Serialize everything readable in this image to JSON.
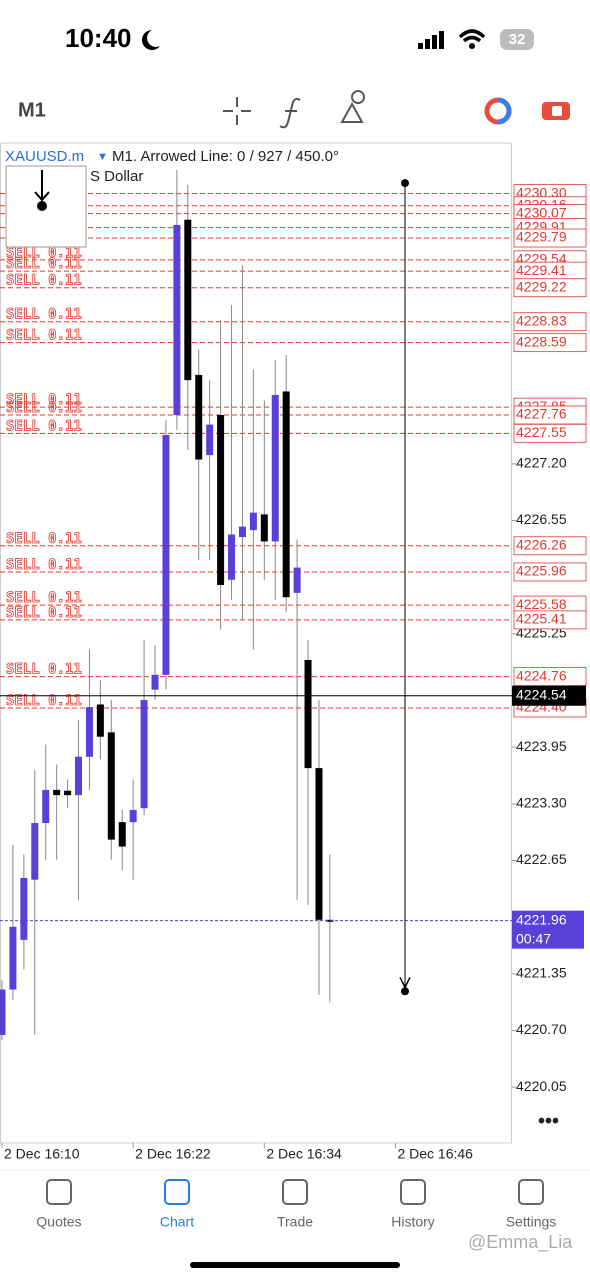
{
  "status_bar": {
    "time": "10:40",
    "battery": "32"
  },
  "toolbar": {
    "timeframe": "M1"
  },
  "chart_data": {
    "type": "candlestick",
    "symbol": "XAUUSD.m",
    "description": "M1. Arrowed Line: 0 / 927 / 450.0°",
    "subtitle": "S Dollar",
    "up_color": "#5a3fd8",
    "down_color": "#000000",
    "open": [
      4220.65,
      4221.17,
      4221.74,
      4222.43,
      4223.08,
      4223.46,
      4223.45,
      4223.4,
      4223.84,
      4224.44,
      4224.12,
      4223.09,
      4223.09,
      4223.25,
      4224.61,
      4224.78,
      4227.76,
      4230.0,
      4228.22,
      4227.3,
      4227.76,
      4225.87,
      4226.36,
      4226.44,
      4226.62,
      4226.31,
      4228.03,
      4225.72,
      4224.95,
      4223.71,
      4221.97
    ],
    "high": [
      4221.28,
      4222.83,
      4222.72,
      4223.69,
      4223.98,
      4223.75,
      4223.58,
      4224.26,
      4225.07,
      4224.72,
      4224.49,
      4223.23,
      4223.58,
      4225.18,
      4225.12,
      4227.7,
      4230.57,
      4230.4,
      4228.51,
      4228.16,
      4228.85,
      4229.02,
      4229.48,
      4228.28,
      4227.93,
      4228.39,
      4228.45,
      4226.33,
      4225.18,
      4224.49,
      4222.72
    ],
    "low": [
      4220.59,
      4221.05,
      4221.4,
      4220.65,
      4222.66,
      4222.66,
      4223.25,
      4222.2,
      4223.46,
      4223.81,
      4222.66,
      4222.54,
      4222.43,
      4223.17,
      4224.49,
      4224.61,
      4227.59,
      4227.36,
      4226.1,
      4226.1,
      4225.3,
      4225.64,
      4225.41,
      4225.07,
      4225.87,
      4225.64,
      4225.5,
      4222.2,
      4222.14,
      4221.11,
      4221.02
    ],
    "close": [
      4221.17,
      4221.89,
      4222.45,
      4223.08,
      4223.46,
      4223.4,
      4223.4,
      4223.84,
      4224.41,
      4224.07,
      4222.89,
      4222.81,
      4223.23,
      4224.49,
      4224.78,
      4227.53,
      4229.94,
      4228.16,
      4227.25,
      4227.65,
      4225.81,
      4226.39,
      4226.48,
      4226.64,
      4226.31,
      4227.99,
      4225.67,
      4226.01,
      4223.71,
      4221.97,
      4221.96
    ],
    "ylim": [
      4219.41,
      4230.88
    ],
    "yticks": [
      {
        "value": 4227.2,
        "label": "4227.20"
      },
      4226.55,
      4225.25,
      4223.95,
      {
        "value": 4223.3,
        "label": "4223.30"
      },
      4222.65,
      4221.35,
      {
        "value": 4220.7,
        "label": "4220.70"
      },
      4220.05
    ],
    "x_labels": [
      "2 Dec 16:10",
      "2 Dec 16:22",
      "2 Dec 16:34",
      "2 Dec 16:46"
    ],
    "order_label": "SELL 0.11",
    "order_color": "#e0392f",
    "orders": [
      {
        "value": 4230.3,
        "label": "4230.30"
      },
      4230.16,
      4230.07,
      4229.91,
      4229.79,
      4229.54,
      4229.41,
      4229.22,
      4228.83,
      4228.59,
      4227.85,
      4227.76,
      4227.55,
      4226.26,
      4225.96,
      4225.58,
      4225.41,
      4224.76,
      {
        "value": 4224.4,
        "label": "4224.40"
      }
    ],
    "current_price": 4224.54,
    "bid": 4221.96,
    "countdown": "00:47",
    "arrowed_line": {
      "from": 4230.42,
      "to": 4221.15
    }
  },
  "nav": {
    "items": [
      "Quotes",
      "Chart",
      "Trade",
      "History",
      "Settings"
    ],
    "active": 1
  },
  "watermark": "@Emma_Lia"
}
